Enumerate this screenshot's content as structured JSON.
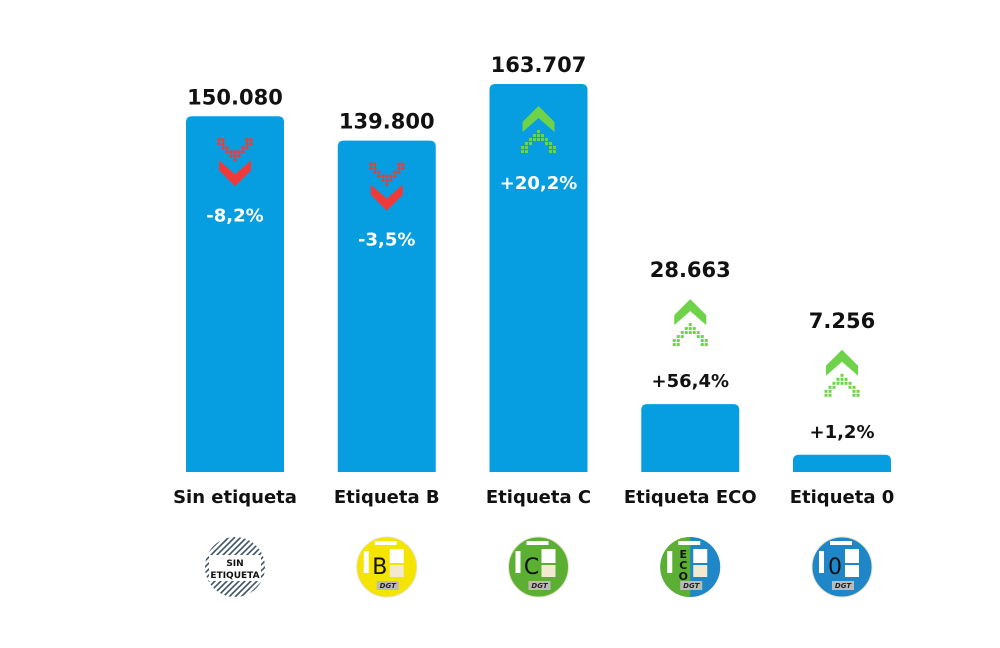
{
  "chart_data": {
    "type": "bar",
    "title": "",
    "xlabel": "",
    "ylabel": "",
    "ylim": [
      0,
      163707
    ],
    "grid": false,
    "categories": [
      "Sin etiqueta",
      "Etiqueta B",
      "Etiqueta C",
      "Etiqueta ECO",
      "Etiqueta 0"
    ],
    "values": [
      150080,
      139800,
      163707,
      28663,
      7256
    ],
    "value_labels": [
      "150.080",
      "139.800",
      "163.707",
      "28.663",
      "7.256"
    ],
    "change_labels": [
      "-8,2%",
      "-3,5%",
      "+20,2%",
      "+56,4%",
      "+1,2%"
    ],
    "change_direction": [
      "down",
      "down",
      "up",
      "up",
      "up"
    ],
    "badges": [
      {
        "icon": "sin-etiqueta-badge-icon",
        "text": "SIN ETIQUETA",
        "color": "#ffffff"
      },
      {
        "icon": "etiqueta-b-badge-icon",
        "text": "B",
        "color": "#f5e400"
      },
      {
        "icon": "etiqueta-c-badge-icon",
        "text": "C",
        "color": "#5bb034"
      },
      {
        "icon": "etiqueta-eco-badge-icon",
        "text": "ECO",
        "color": "#5bb034"
      },
      {
        "icon": "etiqueta-0-badge-icon",
        "text": "0",
        "color": "#1f86c8"
      }
    ],
    "badge_brand": "DGT",
    "colors": {
      "bar": "#069ee0",
      "down": "#f03a3a",
      "up": "#6fd34a"
    }
  }
}
